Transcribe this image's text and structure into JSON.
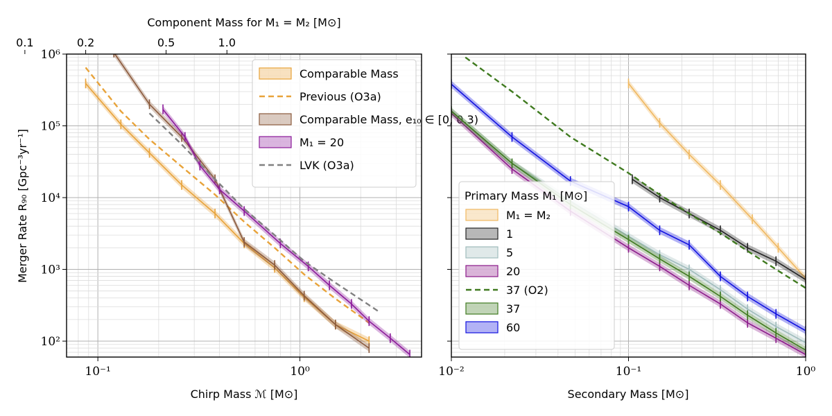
{
  "chart_data": [
    {
      "type": "line",
      "panel": "left",
      "xlabel": "Chirp Mass ℳ [M⊙]",
      "ylabel": "Merger Rate R₉₀ [Gpc⁻³yr⁻¹]",
      "top_xlabel": "Component Mass for M₁ = M₂ [M⊙]",
      "xscale": "log",
      "yscale": "log",
      "xlim": [
        0.07,
        4.0
      ],
      "ylim": [
        60,
        1000000
      ],
      "x_tick_labels": [
        "10⁻¹",
        "10⁰"
      ],
      "y_tick_labels": [
        "10²",
        "10³",
        "10⁴",
        "10⁵",
        "10⁶"
      ],
      "top_tick_labels": [
        "0.1",
        "0.2",
        "0.5",
        "1.0"
      ],
      "top_tick_component_masses": [
        0.1,
        0.2,
        0.5,
        1.0
      ],
      "grid": true,
      "legend_position": "upper-right",
      "series": [
        {
          "name": "Comparable Mass",
          "style": "band",
          "color": "#e8a33a",
          "x": [
            0.087,
            0.13,
            0.18,
            0.26,
            0.38,
            0.53,
            0.75,
            1.05,
            1.5,
            2.2
          ],
          "y": [
            390000,
            105000,
            42000,
            15000,
            6000,
            2300,
            1050,
            410,
            170,
            100
          ]
        },
        {
          "name": "Previous (O3a)",
          "style": "dashed",
          "color": "#e8a33a",
          "x": [
            0.087,
            0.13,
            0.18,
            0.26,
            0.38,
            0.53,
            0.75,
            1.05,
            1.5,
            2.2
          ],
          "y": [
            650000,
            160000,
            65000,
            27000,
            11000,
            4600,
            2000,
            850,
            390,
            180
          ]
        },
        {
          "name": "Comparable Mass, e₁₀ ∈ [0, 0.3)",
          "style": "band",
          "color": "#8b5a3c",
          "x": [
            0.12,
            0.18,
            0.26,
            0.38,
            0.53,
            0.75,
            1.05,
            1.5,
            2.2
          ],
          "y": [
            1050000,
            200000,
            70000,
            18000,
            2400,
            1150,
            430,
            170,
            80
          ]
        },
        {
          "name": "M₁ = 20",
          "style": "band",
          "color": "#8b1a9a",
          "x": [
            0.21,
            0.27,
            0.32,
            0.4,
            0.53,
            0.8,
            1.1,
            1.4,
            1.8,
            2.2,
            2.8,
            3.5
          ],
          "y": [
            170000,
            70000,
            28000,
            13000,
            6500,
            2300,
            1100,
            600,
            330,
            190,
            110,
            65
          ]
        },
        {
          "name": "LVK (O3a)",
          "style": "dashed",
          "color": "#808080",
          "x": [
            0.18,
            0.26,
            0.38,
            0.53,
            0.75,
            1.05,
            1.5,
            2.0,
            2.5
          ],
          "y": [
            150000,
            55000,
            18000,
            7000,
            3000,
            1300,
            650,
            380,
            250
          ]
        }
      ]
    },
    {
      "type": "line",
      "panel": "right",
      "xlabel": "Secondary Mass [M⊙]",
      "ylabel": "",
      "xscale": "log",
      "yscale": "log",
      "xlim": [
        0.01,
        1.0
      ],
      "ylim": [
        60,
        1000000
      ],
      "x_tick_labels": [
        "10⁻²",
        "10⁻¹",
        "10⁰"
      ],
      "grid": true,
      "legend_title": "Primary Mass M₁ [M⊙]",
      "legend_position": "lower-left",
      "series": [
        {
          "name": "M₁ = M₂",
          "style": "band",
          "color": "#f0b860",
          "x": [
            0.1,
            0.15,
            0.22,
            0.33,
            0.5,
            0.7,
            1.0
          ],
          "y": [
            390000,
            110000,
            40000,
            15000,
            5000,
            2000,
            750
          ]
        },
        {
          "name": "1",
          "style": "band",
          "color": "#222222",
          "x": [
            0.105,
            0.15,
            0.22,
            0.33,
            0.47,
            0.68,
            1.0
          ],
          "y": [
            18000,
            10000,
            6000,
            3500,
            2000,
            1300,
            720
          ]
        },
        {
          "name": "5",
          "style": "band",
          "color": "#9fbcbc",
          "x": [
            0.01,
            0.022,
            0.047,
            0.1,
            0.15,
            0.22,
            0.33,
            0.47,
            0.68,
            1.0
          ],
          "y": [
            160000,
            30000,
            9000,
            2900,
            1600,
            1000,
            520,
            280,
            160,
            95
          ]
        },
        {
          "name": "20",
          "style": "band",
          "color": "#8b1a8a",
          "x": [
            0.01,
            0.022,
            0.047,
            0.1,
            0.15,
            0.22,
            0.33,
            0.47,
            0.68,
            1.0
          ],
          "y": [
            150000,
            25000,
            6500,
            2000,
            1100,
            600,
            330,
            180,
            110,
            65
          ]
        },
        {
          "name": "37 (O2)",
          "style": "dashed",
          "color": "#3f7a1f",
          "x": [
            0.012,
            0.022,
            0.047,
            0.1,
            0.15,
            0.22,
            0.33,
            0.47,
            0.68,
            1.0
          ],
          "y": [
            900000,
            300000,
            70000,
            22000,
            11000,
            6000,
            3200,
            1800,
            1000,
            550
          ]
        },
        {
          "name": "37",
          "style": "band",
          "color": "#3f7a1f",
          "x": [
            0.01,
            0.022,
            0.047,
            0.1,
            0.15,
            0.22,
            0.33,
            0.47,
            0.68,
            1.0
          ],
          "y": [
            160000,
            30000,
            8000,
            2600,
            1400,
            800,
            420,
            230,
            130,
            75
          ]
        },
        {
          "name": "60",
          "style": "band",
          "color": "#1010e0",
          "x": [
            0.01,
            0.022,
            0.047,
            0.1,
            0.15,
            0.22,
            0.33,
            0.47,
            0.68,
            1.0
          ],
          "y": [
            380000,
            70000,
            17000,
            7500,
            3500,
            2200,
            800,
            420,
            240,
            140
          ]
        }
      ]
    }
  ]
}
